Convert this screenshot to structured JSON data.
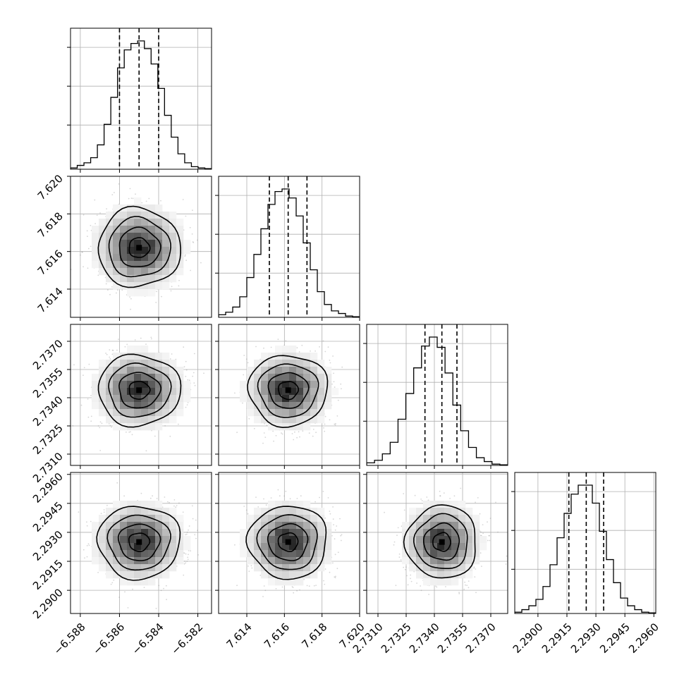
{
  "chart_data": {
    "type": "corner",
    "grid": true,
    "parameters": [
      {
        "range": [
          -6.5885,
          -6.5813
        ],
        "median": -6.585,
        "q16": -6.586,
        "q84": -6.584,
        "sigma": 0.001,
        "ticks": [
          -6.588,
          -6.586,
          -6.584,
          -6.582
        ],
        "tick_labels": [
          "−6.588",
          "−6.586",
          "−6.584",
          "−6.582"
        ]
      },
      {
        "range": [
          7.6125,
          7.62
        ],
        "median": 7.6162,
        "q16": 7.6152,
        "q84": 7.6172,
        "sigma": 0.001,
        "ticks": [
          7.614,
          7.616,
          7.618,
          7.62
        ],
        "tick_labels": [
          "7.614",
          "7.616",
          "7.618",
          "7.620"
        ]
      },
      {
        "range": [
          2.7304,
          2.7379
        ],
        "median": 2.7344,
        "q16": 2.7335,
        "q84": 2.7352,
        "sigma": 0.0009,
        "ticks": [
          2.731,
          2.7325,
          2.734,
          2.7355,
          2.737
        ],
        "tick_labels": [
          "2.7310",
          "2.7325",
          "2.7340",
          "2.7355",
          "2.7370"
        ]
      },
      {
        "range": [
          2.2888,
          2.2961
        ],
        "median": 2.2925,
        "q16": 2.2916,
        "q84": 2.2934,
        "sigma": 0.0009,
        "ticks": [
          2.29,
          2.2915,
          2.293,
          2.2945,
          2.296
        ],
        "tick_labels": [
          "2.2900",
          "2.2915",
          "2.2930",
          "2.2945",
          "2.2960"
        ]
      }
    ],
    "histograms": [
      [
        0.01,
        0.03,
        0.05,
        0.09,
        0.19,
        0.35,
        0.56,
        0.79,
        0.93,
        0.98,
        1.0,
        0.94,
        0.82,
        0.63,
        0.42,
        0.25,
        0.12,
        0.05,
        0.02,
        0.01,
        0.005
      ],
      [
        0.02,
        0.04,
        0.08,
        0.16,
        0.31,
        0.49,
        0.69,
        0.88,
        0.98,
        1.0,
        0.93,
        0.79,
        0.58,
        0.37,
        0.2,
        0.1,
        0.05,
        0.03,
        0.01,
        0.005
      ],
      [
        0.02,
        0.04,
        0.09,
        0.18,
        0.36,
        0.56,
        0.76,
        0.93,
        1.0,
        0.92,
        0.72,
        0.47,
        0.27,
        0.14,
        0.06,
        0.03,
        0.01,
        0.005
      ],
      [
        0.01,
        0.03,
        0.06,
        0.11,
        0.21,
        0.38,
        0.59,
        0.78,
        0.93,
        1.0,
        1.0,
        0.86,
        0.64,
        0.42,
        0.24,
        0.12,
        0.06,
        0.03,
        0.01,
        0.005
      ]
    ],
    "density_levels": [
      0.118,
      0.393,
      0.675,
      0.865
    ]
  }
}
